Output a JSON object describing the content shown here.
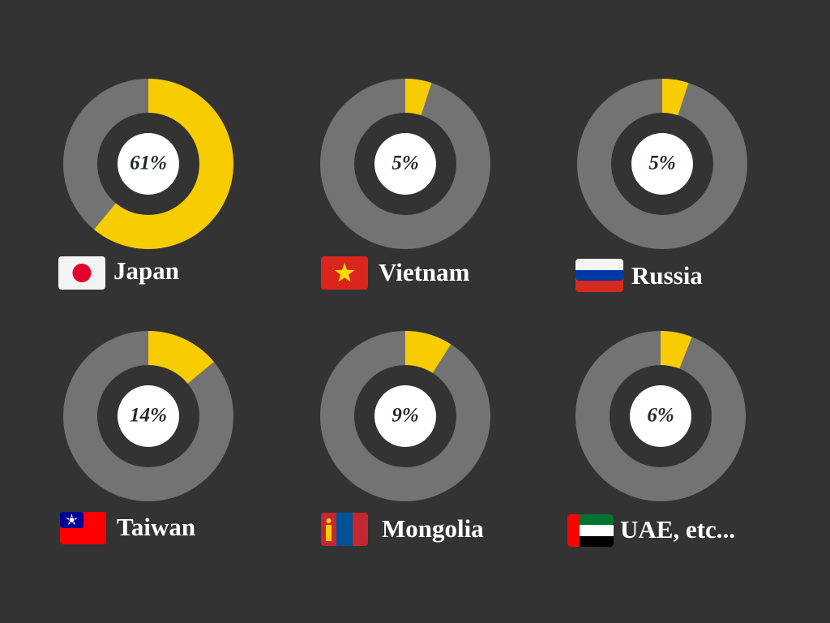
{
  "chart_data": [
    {
      "type": "donut",
      "title": "Japan",
      "values": [
        61
      ],
      "value_labels": [
        "61%"
      ],
      "color": "#f7cc00",
      "ylim": [
        0,
        100
      ]
    },
    {
      "type": "donut",
      "title": "Vietnam",
      "values": [
        5
      ],
      "value_labels": [
        "5%"
      ],
      "color": "#f7cc00",
      "ylim": [
        0,
        100
      ]
    },
    {
      "type": "donut",
      "title": "Russia",
      "values": [
        5
      ],
      "value_labels": [
        "5%"
      ],
      "color": "#f7cc00",
      "ylim": [
        0,
        100
      ]
    },
    {
      "type": "donut",
      "title": "Taiwan",
      "values": [
        14
      ],
      "value_labels": [
        "14%"
      ],
      "color": "#f7cc00",
      "ylim": [
        0,
        100
      ]
    },
    {
      "type": "donut",
      "title": "Mongolia",
      "values": [
        9
      ],
      "value_labels": [
        "9%"
      ],
      "color": "#f7cc00",
      "ylim": [
        0,
        100
      ]
    },
    {
      "type": "donut",
      "title": "UAE, etc...",
      "values": [
        6
      ],
      "value_labels": [
        "6%"
      ],
      "color": "#f7cc00",
      "ylim": [
        0,
        100
      ]
    }
  ]
}
